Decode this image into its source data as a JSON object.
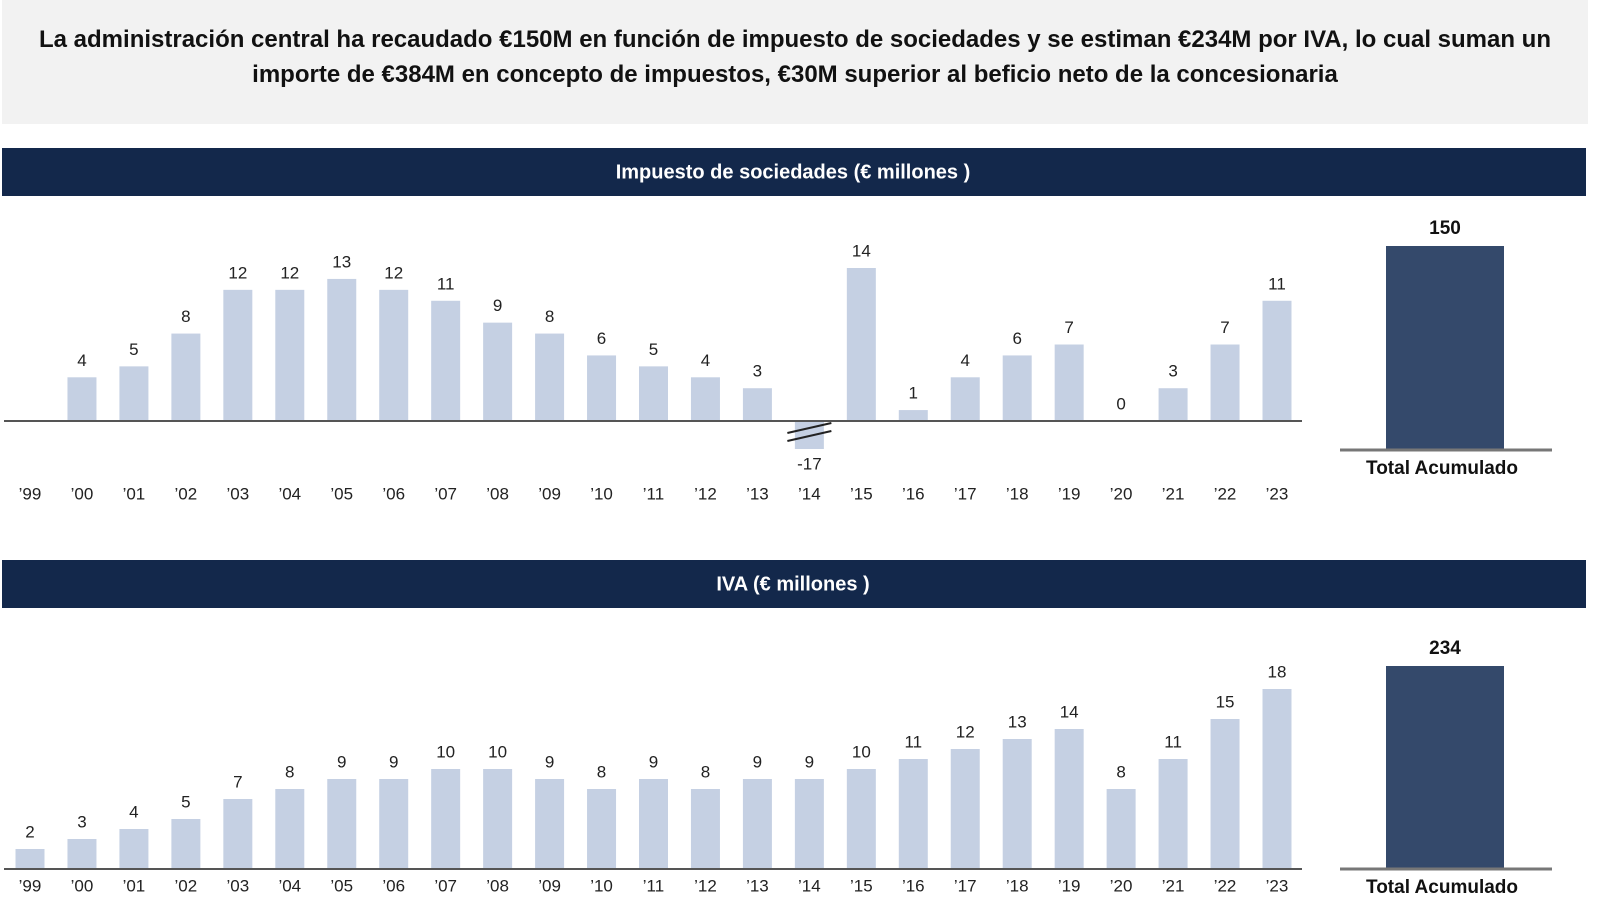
{
  "headline": "La administración central ha recaudado €150M en función de impuesto de sociedades y se estiman €234M por IVA, lo cual suman un importe de €384M en concepto de impuestos, €30M superior al beficio neto de la concesionaria",
  "chart_data": [
    {
      "type": "bar",
      "title": "Impuesto de sociedades (€ millones )",
      "categories": [
        "’99",
        "’00",
        "’01",
        "’02",
        "’03",
        "’04",
        "’05",
        "’06",
        "’07",
        "’08",
        "’09",
        "’10",
        "’11",
        "’12",
        "’13",
        "’14",
        "’15",
        "’16",
        "’17",
        "’18",
        "’19",
        "’20",
        "’21",
        "’22",
        "’23"
      ],
      "values": [
        null,
        4,
        5,
        8,
        12,
        12,
        13,
        12,
        11,
        9,
        8,
        6,
        5,
        4,
        3,
        -17,
        14,
        1,
        4,
        6,
        7,
        0,
        3,
        7,
        11
      ],
      "color": "#c5d0e3",
      "axis_break": true,
      "total": {
        "label": "Total Acumulado",
        "value": 150,
        "color": "#34496b"
      },
      "banner_color": "#13284b"
    },
    {
      "type": "bar",
      "title": "IVA (€ millones )",
      "categories": [
        "’99",
        "’00",
        "’01",
        "’02",
        "’03",
        "’04",
        "’05",
        "’06",
        "’07",
        "’08",
        "’09",
        "’10",
        "’11",
        "’12",
        "’13",
        "’14",
        "’15",
        "’16",
        "’17",
        "’18",
        "’19",
        "’20",
        "’21",
        "’22",
        "’23"
      ],
      "values": [
        2,
        3,
        4,
        5,
        7,
        8,
        9,
        9,
        10,
        10,
        9,
        8,
        9,
        8,
        9,
        9,
        10,
        11,
        12,
        13,
        14,
        8,
        11,
        15,
        18
      ],
      "color": "#c5d0e3",
      "axis_break": false,
      "total": {
        "label": "Total Acumulado",
        "value": 234,
        "color": "#34496b"
      },
      "banner_color": "#13284b"
    }
  ]
}
